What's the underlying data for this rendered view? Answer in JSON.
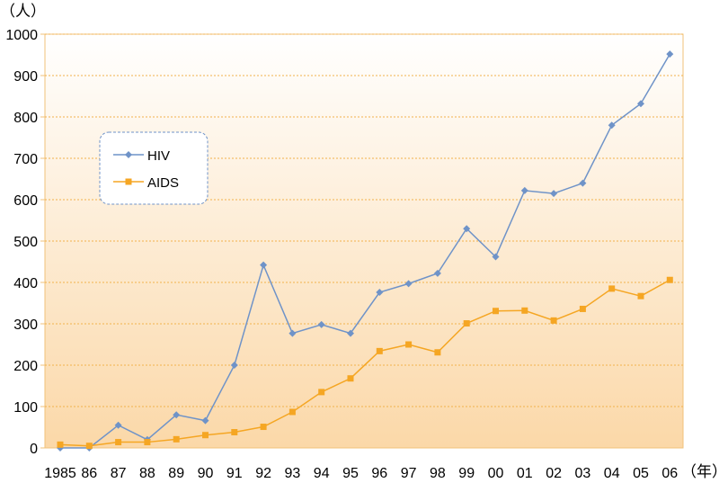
{
  "chart_data": {
    "type": "line",
    "ylabel": "（人）",
    "xlabel": "（年）",
    "ylim": [
      0,
      1000
    ],
    "yticks": [
      0,
      100,
      200,
      300,
      400,
      500,
      600,
      700,
      800,
      900,
      1000
    ],
    "categories": [
      "1985",
      "86",
      "87",
      "88",
      "89",
      "90",
      "91",
      "92",
      "93",
      "94",
      "95",
      "96",
      "97",
      "98",
      "99",
      "00",
      "01",
      "02",
      "03",
      "04",
      "05",
      "06"
    ],
    "series": [
      {
        "name": "HIV",
        "color": "#6f93c8",
        "marker": "diamond",
        "values": [
          0,
          0,
          55,
          20,
          80,
          66,
          200,
          442,
          277,
          298,
          277,
          376,
          397,
          422,
          530,
          462,
          622,
          615,
          640,
          780,
          832,
          952
        ]
      },
      {
        "name": "AIDS",
        "color": "#f5a623",
        "marker": "square",
        "values": [
          8,
          5,
          14,
          14,
          21,
          31,
          38,
          51,
          87,
          135,
          168,
          234,
          250,
          231,
          301,
          331,
          332,
          308,
          336,
          385,
          367,
          406
        ]
      }
    ],
    "grid": true,
    "legend_position": "top-left",
    "plot_background": "gradient white to light orange",
    "grid_color": "#f2b24c"
  }
}
